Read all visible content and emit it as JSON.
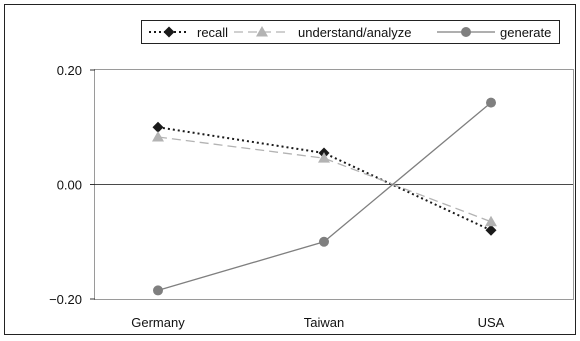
{
  "chart_data": {
    "type": "line",
    "categories": [
      "Germany",
      "Taiwan",
      "USA"
    ],
    "series": [
      {
        "name": "recall",
        "values": [
          0.1,
          0.055,
          -0.08
        ],
        "color": "#1a1a1a",
        "marker": "diamond",
        "line": "dotted"
      },
      {
        "name": "understand/analyze",
        "values": [
          0.083,
          0.046,
          -0.065
        ],
        "color": "#b3b3b3",
        "marker": "triangle",
        "line": "dashed"
      },
      {
        "name": "generate",
        "values": [
          -0.185,
          -0.1,
          0.143
        ],
        "color": "#7f7f7f",
        "marker": "circle",
        "line": "solid"
      }
    ],
    "y_ticks": [
      "0.20",
      "0.00",
      "−0.20"
    ],
    "y_tick_values": [
      0.2,
      0.0,
      -0.2
    ],
    "ylim": [
      -0.2,
      0.2
    ],
    "zero_line": true,
    "grid": false,
    "legend_position": "top-right",
    "title": "",
    "xlabel": "",
    "ylabel": ""
  }
}
